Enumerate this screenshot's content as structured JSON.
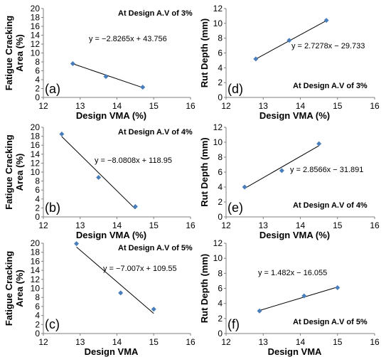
{
  "chart_data": [
    {
      "type": "scatter",
      "panel_label": "(a)",
      "annotation": "At Design A.V of 3%",
      "equation": "y = -2.8265x + 43.756",
      "xlabel": "Design VMA  (%)",
      "ylabel": [
        "Fatigue Cracking",
        "Area (%)"
      ],
      "xlim": [
        12,
        16
      ],
      "xticks": [
        12,
        13,
        14,
        15,
        16
      ],
      "ylim": [
        0,
        20
      ],
      "yticks": [
        0,
        2,
        4,
        6,
        8,
        10,
        12,
        14,
        16,
        18,
        20
      ],
      "points": [
        {
          "x": 12.8,
          "y": 7.6
        },
        {
          "x": 13.7,
          "y": 4.7
        },
        {
          "x": 14.7,
          "y": 2.3
        }
      ],
      "trend": {
        "slope": -2.8265,
        "intercept": 43.756,
        "x_range": [
          12.8,
          14.7
        ]
      }
    },
    {
      "type": "scatter",
      "panel_label": "(d)",
      "annotation": "At Design A.V of 3%",
      "equation": "y = 2.7278x - 29.733",
      "xlabel": "Design VMA (%)",
      "ylabel": [
        "Rut Depth (mm)"
      ],
      "xlim": [
        12,
        16
      ],
      "xticks": [
        12,
        13,
        14,
        15,
        16
      ],
      "ylim": [
        0,
        12
      ],
      "yticks": [
        0,
        2,
        4,
        6,
        8,
        10,
        12
      ],
      "points": [
        {
          "x": 12.8,
          "y": 5.2
        },
        {
          "x": 13.7,
          "y": 7.7
        },
        {
          "x": 14.7,
          "y": 10.4
        }
      ],
      "trend": {
        "slope": 2.7278,
        "intercept": -29.733,
        "x_range": [
          12.8,
          14.7
        ]
      }
    },
    {
      "type": "scatter",
      "panel_label": "(b)",
      "annotation": "At Design A.V of 4%",
      "equation": "y = -8.0808x + 118.95",
      "xlabel": "Design VMA  (%)",
      "ylabel": [
        "Fatigue Cracking",
        "Area (%)"
      ],
      "xlim": [
        12,
        16
      ],
      "xticks": [
        12,
        13,
        14,
        15,
        16
      ],
      "ylim": [
        0,
        20
      ],
      "yticks": [
        0,
        2,
        4,
        6,
        8,
        10,
        12,
        14,
        16,
        18,
        20
      ],
      "points": [
        {
          "x": 12.5,
          "y": 18.5
        },
        {
          "x": 13.5,
          "y": 8.8
        },
        {
          "x": 14.5,
          "y": 2.3
        }
      ],
      "trend": {
        "slope": -8.0808,
        "intercept": 118.95,
        "x_range": [
          12.5,
          14.5
        ]
      }
    },
    {
      "type": "scatter",
      "panel_label": "(e)",
      "annotation": "At Design A.V of 4%",
      "equation": "y = 2.8566x - 31.891",
      "xlabel": "Design VMA (%)",
      "ylabel": [
        "Rut Depth (mm)"
      ],
      "xlim": [
        12,
        16
      ],
      "xticks": [
        12,
        13,
        14,
        15,
        16
      ],
      "ylim": [
        0,
        12
      ],
      "yticks": [
        0,
        2,
        4,
        6,
        8,
        10,
        12
      ],
      "points": [
        {
          "x": 12.5,
          "y": 4.0
        },
        {
          "x": 13.5,
          "y": 6.2
        },
        {
          "x": 14.5,
          "y": 9.8
        }
      ],
      "trend": {
        "slope": 2.8566,
        "intercept": -31.891,
        "x_range": [
          12.5,
          14.5
        ]
      }
    },
    {
      "type": "scatter",
      "panel_label": "(c)",
      "annotation": "At Design A.V of 5%",
      "equation": "y = -7.007x + 109.55",
      "xlabel": "Design VMA",
      "ylabel": [
        "Fatigue Cracking",
        "Area (%)"
      ],
      "xlim": [
        12,
        16
      ],
      "xticks": [
        12,
        13,
        14,
        15,
        16
      ],
      "ylim": [
        0,
        20
      ],
      "yticks": [
        0,
        2,
        4,
        6,
        8,
        10,
        12,
        14,
        16,
        18,
        20
      ],
      "points": [
        {
          "x": 12.9,
          "y": 19.9
        },
        {
          "x": 14.1,
          "y": 9.0
        },
        {
          "x": 15.0,
          "y": 5.4
        }
      ],
      "trend": {
        "slope": -7.007,
        "intercept": 109.55,
        "x_range": [
          12.9,
          15.0
        ]
      }
    },
    {
      "type": "scatter",
      "panel_label": "(f)",
      "annotation": "At Design A.V of 5%",
      "equation": "y = 1.482x - 16.055",
      "xlabel": "Design VMA",
      "ylabel": [
        "Rut Depth (mm)"
      ],
      "xlim": [
        12,
        16
      ],
      "xticks": [
        12,
        13,
        14,
        15,
        16
      ],
      "ylim": [
        0,
        12
      ],
      "yticks": [
        0,
        2,
        4,
        6,
        8,
        10,
        12
      ],
      "points": [
        {
          "x": 12.9,
          "y": 3.0
        },
        {
          "x": 14.1,
          "y": 5.0
        },
        {
          "x": 15.0,
          "y": 6.1
        }
      ],
      "trend": {
        "slope": 1.482,
        "intercept": -16.055,
        "x_range": [
          12.9,
          15.0
        ]
      }
    }
  ],
  "colors": {
    "marker": "#4a7ebb",
    "line": "#000000",
    "axis": "#7f7f7f"
  }
}
